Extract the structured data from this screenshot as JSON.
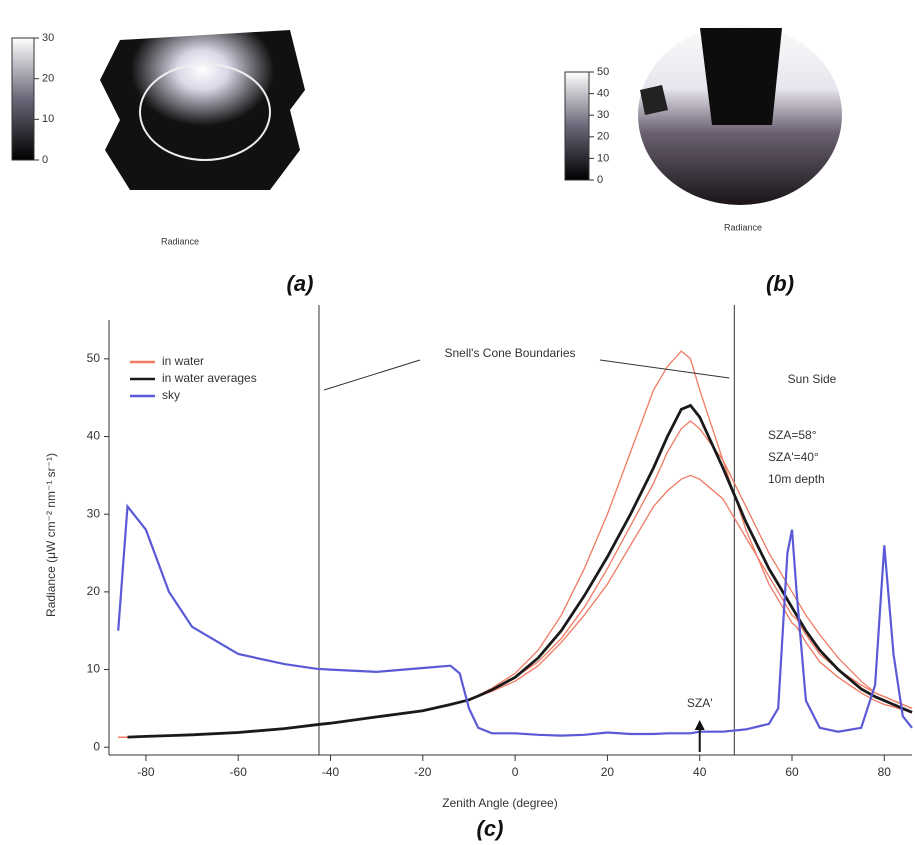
{
  "images": [
    {
      "caption": "(a)",
      "label": "Radiance",
      "colorbar": {
        "lim": [
          0,
          30
        ],
        "ticks": [
          0,
          10,
          20,
          30
        ]
      }
    },
    {
      "caption": "(b)",
      "label": "Radiance",
      "colorbar": {
        "lim": [
          0,
          50
        ],
        "ticks": [
          0,
          10,
          20,
          30,
          40,
          50
        ]
      }
    }
  ],
  "chart_data": {
    "type": "line",
    "caption": "(c)",
    "x_label": "Zenith Angle (degree)",
    "y_label": "Radiance (μW cm⁻² nm⁻¹ sr⁻¹)",
    "xlim": [
      -88,
      86
    ],
    "ylim": [
      -1,
      55
    ],
    "xticks": [
      -80,
      -60,
      -40,
      -20,
      0,
      20,
      40,
      60,
      80
    ],
    "yticks": [
      0,
      10,
      20,
      30,
      40,
      50
    ],
    "legend": "upper left",
    "vlines": [
      -42.5,
      47.5
    ],
    "annotations": [
      "Snell's Cone Boundaries",
      "Sun Side",
      "SZA=58°",
      "SZA'=40°",
      "10m depth"
    ],
    "markers": [
      {
        "label": "SZA'",
        "x": 40
      }
    ],
    "x": [
      -86,
      -84,
      -80,
      -75,
      -70,
      -60,
      -50,
      -43,
      -40,
      -30,
      -20,
      -14,
      -12,
      -10,
      -8,
      -5,
      0,
      5,
      10,
      15,
      20,
      25,
      30,
      33,
      36,
      38,
      40,
      45,
      50,
      55,
      57,
      59,
      60,
      61,
      63,
      66,
      70,
      75,
      78,
      80,
      82,
      84,
      86
    ],
    "series": [
      {
        "name": "in water",
        "color": "#f07a62",
        "curves": [
          [
            1.3,
            1.3,
            1.4,
            1.5,
            1.6,
            1.9,
            2.4,
            2.9,
            3.1,
            3.9,
            4.7,
            5.5,
            5.8,
            6.1,
            6.7,
            7.6,
            9.5,
            12.5,
            17,
            23,
            30,
            38,
            46,
            49,
            51,
            50,
            46,
            37,
            28,
            21,
            19,
            17,
            16,
            15.5,
            13.5,
            11,
            9,
            7,
            6,
            5.5,
            5.2,
            4.8,
            4.5
          ],
          [
            1.3,
            1.3,
            1.4,
            1.5,
            1.6,
            1.9,
            2.4,
            2.9,
            3.1,
            3.9,
            4.7,
            5.5,
            5.8,
            6.1,
            6.6,
            7.4,
            9,
            11,
            14,
            18,
            23,
            28.5,
            34,
            38,
            41,
            42,
            41,
            37,
            31,
            25,
            23,
            21,
            20,
            19,
            17,
            14.5,
            11.5,
            8.5,
            7,
            6.5,
            6,
            5.5,
            5
          ],
          [
            1.3,
            1.3,
            1.4,
            1.5,
            1.6,
            1.9,
            2.4,
            2.9,
            3.1,
            3.9,
            4.7,
            5.5,
            5.8,
            6.1,
            6.5,
            7.2,
            8.5,
            10.5,
            13.5,
            17,
            21,
            26,
            31,
            33,
            34.5,
            35,
            34.5,
            32,
            27,
            22,
            20,
            18,
            17,
            16.5,
            14.5,
            12,
            10,
            8,
            7,
            6.5,
            6,
            5.5,
            5
          ]
        ]
      },
      {
        "name": "in water averages",
        "color": "#1a1a1a",
        "values": [
          null,
          1.3,
          1.4,
          1.5,
          1.6,
          1.9,
          2.4,
          2.9,
          3.1,
          3.9,
          4.7,
          5.5,
          5.8,
          6.1,
          6.6,
          7.4,
          9,
          11.5,
          15,
          19.5,
          24.5,
          30,
          36,
          40,
          43.5,
          44,
          42.5,
          36,
          29,
          23,
          21,
          19,
          18,
          17,
          15,
          12.5,
          10,
          7.5,
          6.5,
          6,
          5.5,
          5,
          4.5
        ]
      },
      {
        "name": "sky",
        "color": "#5a5ad8",
        "values": [
          15,
          31,
          28,
          20,
          15.5,
          12,
          10.7,
          10.1,
          10,
          9.7,
          10.2,
          10.5,
          9.5,
          5,
          2.5,
          1.8,
          1.8,
          1.6,
          1.5,
          1.6,
          1.9,
          1.7,
          1.7,
          1.8,
          1.8,
          1.8,
          2,
          2,
          2.3,
          3,
          5,
          25,
          28,
          20,
          6,
          2.5,
          2,
          2.5,
          8,
          26,
          12,
          4,
          2.5
        ]
      }
    ]
  }
}
